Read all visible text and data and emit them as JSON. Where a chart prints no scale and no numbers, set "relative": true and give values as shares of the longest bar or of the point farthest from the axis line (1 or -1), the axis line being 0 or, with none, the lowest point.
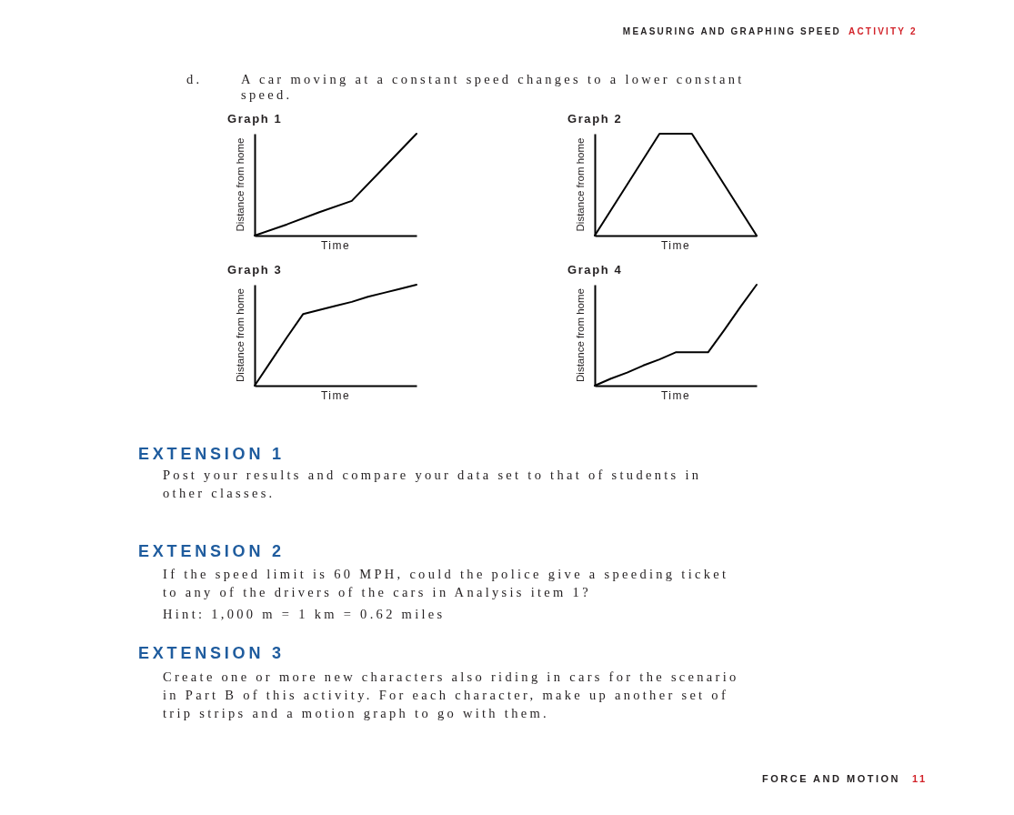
{
  "chart_data": [
    {
      "type": "other",
      "annotations": [
        "MEASURING AND GRAPHING SPEED",
        "ACTIVITY 2",
        "d.",
        "A car moving at a constant speed changes to a lower constant speed."
      ]
    },
    {
      "type": "line",
      "title": "Graph 1",
      "xlabel": "Time",
      "ylabel": "Distance from home",
      "relative": true,
      "categories": [
        null,
        null,
        null,
        null,
        null,
        null
      ],
      "values": [
        0,
        0.11,
        0.23,
        0.34,
        0.67,
        1
      ],
      "color": "#000000"
    },
    {
      "type": "line",
      "title": "Graph 2",
      "xlabel": "Time",
      "ylabel": "Distance from home",
      "relative": true,
      "categories": [
        null,
        null,
        null,
        null,
        null,
        null
      ],
      "values": [
        0,
        0.5,
        1,
        1,
        0.5,
        0
      ],
      "color": "#000000"
    },
    {
      "type": "line",
      "title": "Graph 3",
      "xlabel": "Time",
      "ylabel": "Distance from home",
      "relative": true,
      "categories": [
        null,
        null,
        null,
        null,
        null,
        null,
        null,
        null,
        null,
        null,
        null
      ],
      "values": [
        0,
        0.24,
        0.48,
        0.71,
        0.75,
        0.79,
        0.83,
        0.88,
        0.92,
        0.96,
        1
      ],
      "color": "#000000"
    },
    {
      "type": "line",
      "title": "Graph 4",
      "xlabel": "Time",
      "ylabel": "Distance from home",
      "relative": true,
      "categories": [
        null,
        null,
        null,
        null,
        null,
        null,
        null,
        null,
        null,
        null,
        null
      ],
      "values": [
        0,
        0.07,
        0.13,
        0.2,
        0.26,
        0.33,
        0.33,
        0.33,
        0.55,
        0.78,
        1
      ],
      "color": "#000000"
    },
    {
      "type": "other",
      "annotations": [
        "EXTENSION 1",
        "Post your results and compare your data set to that of students in other classes.",
        "EXTENSION 2",
        "If the speed limit is 60 MPH, could the police give a speeding ticket to any of the drivers of the cars in Analysis item 1?",
        "Hint: 1,000 m = 1 km = 0.62 miles",
        "EXTENSION 3",
        "Create one or more new characters also riding in cars for the scenario in Part B of this activity. For each character, make up another set of trip strips and a motion graph to go with them.",
        "FORCE AND MOTION",
        "11"
      ]
    }
  ]
}
